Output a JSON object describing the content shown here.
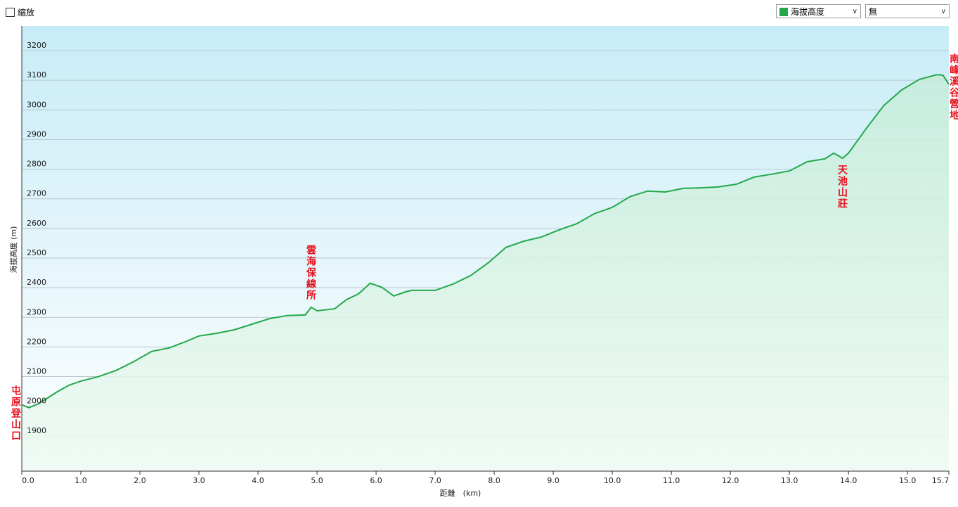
{
  "ui": {
    "zoom_label": "縮放",
    "overlay_select": "無"
  },
  "chart_data": {
    "type": "area",
    "x_label": "距離　(km)",
    "y_label": "海拔高度 (m)",
    "x": [
      0.0,
      0.12,
      0.29,
      0.4,
      0.6,
      0.8,
      1.0,
      1.3,
      1.6,
      1.9,
      2.2,
      2.5,
      2.8,
      3.0,
      3.3,
      3.6,
      3.9,
      4.2,
      4.5,
      4.8,
      4.9,
      5.0,
      5.3,
      5.5,
      5.7,
      5.9,
      6.1,
      6.3,
      6.5,
      6.6,
      7.0,
      7.3,
      7.6,
      7.9,
      8.2,
      8.5,
      8.8,
      9.1,
      9.4,
      9.7,
      10.0,
      10.3,
      10.6,
      10.9,
      11.2,
      11.5,
      11.8,
      12.1,
      12.4,
      12.7,
      13.0,
      13.3,
      13.6,
      13.75,
      13.9,
      14.0,
      14.3,
      14.6,
      14.9,
      15.2,
      15.5,
      15.6,
      15.7
    ],
    "series": [
      {
        "name": "海拔高度",
        "color": "#22a84a",
        "values": [
          2005,
          1995,
          2009,
          2023,
          2049,
          2071,
          2085,
          2100,
          2121,
          2151,
          2185,
          2197,
          2220,
          2237,
          2246,
          2258,
          2277,
          2296,
          2306,
          2308,
          2334,
          2322,
          2329,
          2360,
          2379,
          2415,
          2401,
          2372,
          2386,
          2391,
          2391,
          2412,
          2441,
          2484,
          2536,
          2557,
          2571,
          2595,
          2616,
          2650,
          2671,
          2707,
          2726,
          2723,
          2735,
          2737,
          2740,
          2749,
          2773,
          2783,
          2794,
          2825,
          2835,
          2854,
          2837,
          2854,
          2937,
          3015,
          3067,
          3103,
          3119,
          3117,
          3086
        ]
      }
    ],
    "xlim": [
      0,
      15.7
    ],
    "ylim": [
      1781,
      3283
    ],
    "xticks": [
      {
        "value": 0,
        "label": "0.0"
      },
      {
        "value": 1,
        "label": "1.0"
      },
      {
        "value": 2,
        "label": "2.0"
      },
      {
        "value": 3,
        "label": "3.0"
      },
      {
        "value": 4,
        "label": "4.0"
      },
      {
        "value": 5,
        "label": "5.0"
      },
      {
        "value": 6,
        "label": "6.0"
      },
      {
        "value": 7,
        "label": "7.0"
      },
      {
        "value": 8,
        "label": "8.0"
      },
      {
        "value": 9,
        "label": "9.0"
      },
      {
        "value": 10,
        "label": "10.0"
      },
      {
        "value": 11,
        "label": "11.0"
      },
      {
        "value": 12,
        "label": "12.0"
      },
      {
        "value": 13,
        "label": "13.0"
      },
      {
        "value": 14,
        "label": "14.0"
      },
      {
        "value": 15,
        "label": "15.0"
      },
      15.7
    ],
    "yticks": [
      1900,
      2000,
      2100,
      2200,
      2300,
      2400,
      2500,
      2600,
      2700,
      2800,
      2900,
      3000,
      3100,
      3200
    ],
    "grid": true,
    "annotations": [
      "屯原登山口",
      "雲海保線所",
      "天池山莊",
      "南峰溪谷營地"
    ]
  }
}
